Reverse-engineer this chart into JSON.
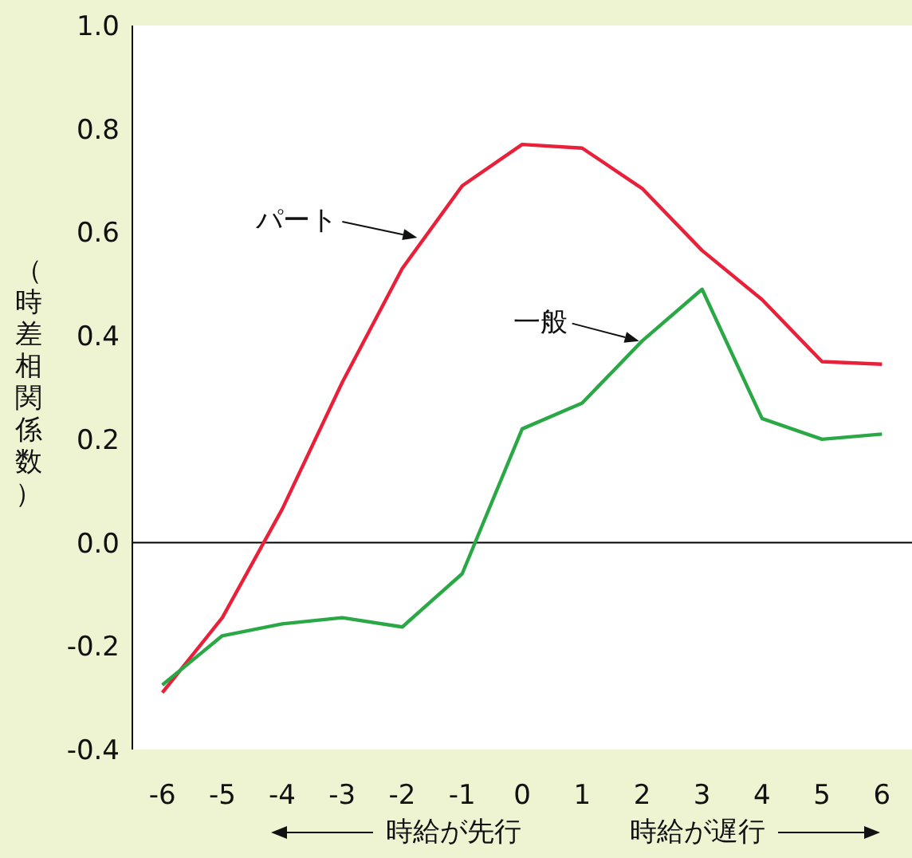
{
  "chart_data": {
    "type": "line",
    "ylabel": "（時差相関係数）",
    "xlabel": "時給が先行　　　　時給が遅行",
    "x": [
      -6,
      -5,
      -4,
      -3,
      -2,
      -1,
      0,
      1,
      2,
      3,
      4,
      5,
      6
    ],
    "series": [
      {
        "color": "#e8203a",
        "values": [
          -0.29,
          -0.145,
          0.065,
          0.31,
          0.53,
          0.69,
          0.77,
          0.763,
          0.685,
          0.565,
          0.47,
          0.35,
          0.345
        ]
      },
      {
        "color": "#2aa845",
        "values": [
          -0.275,
          -0.18,
          -0.157,
          -0.145,
          -0.163,
          -0.06,
          0.22,
          0.27,
          0.39,
          0.49,
          0.24,
          0.2,
          0.21
        ]
      }
    ],
    "annotations": [
      {
        "text": "パート",
        "x": -1.75,
        "y": 0.59
      },
      {
        "text": "一般",
        "x": 1.95,
        "y": 0.39
      }
    ],
    "xlim": [
      -6.5,
      6.5
    ],
    "xticks": [
      -6,
      -5,
      -4,
      -3,
      -2,
      -1,
      0,
      1,
      2,
      3,
      4,
      5,
      6
    ],
    "ylim": [
      -0.4,
      1.0
    ],
    "yticks": [
      {
        "value": -0.4,
        "label": "-0.4"
      },
      {
        "value": -0.2,
        "label": "-0.2"
      },
      {
        "value": 0,
        "label": "0.0"
      },
      {
        "value": 0.2,
        "label": "0.2"
      },
      {
        "value": 0.4,
        "label": "0.4"
      },
      {
        "value": 0.6,
        "label": "0.6"
      },
      {
        "value": 0.8,
        "label": "0.8"
      },
      {
        "value": 1,
        "label": "1.0"
      }
    ],
    "ref_lines": [
      {
        "axis": "y",
        "value": 0,
        "color": "#000000"
      }
    ],
    "grid": false,
    "legend": false,
    "marker": "none",
    "line_style": "solid"
  }
}
